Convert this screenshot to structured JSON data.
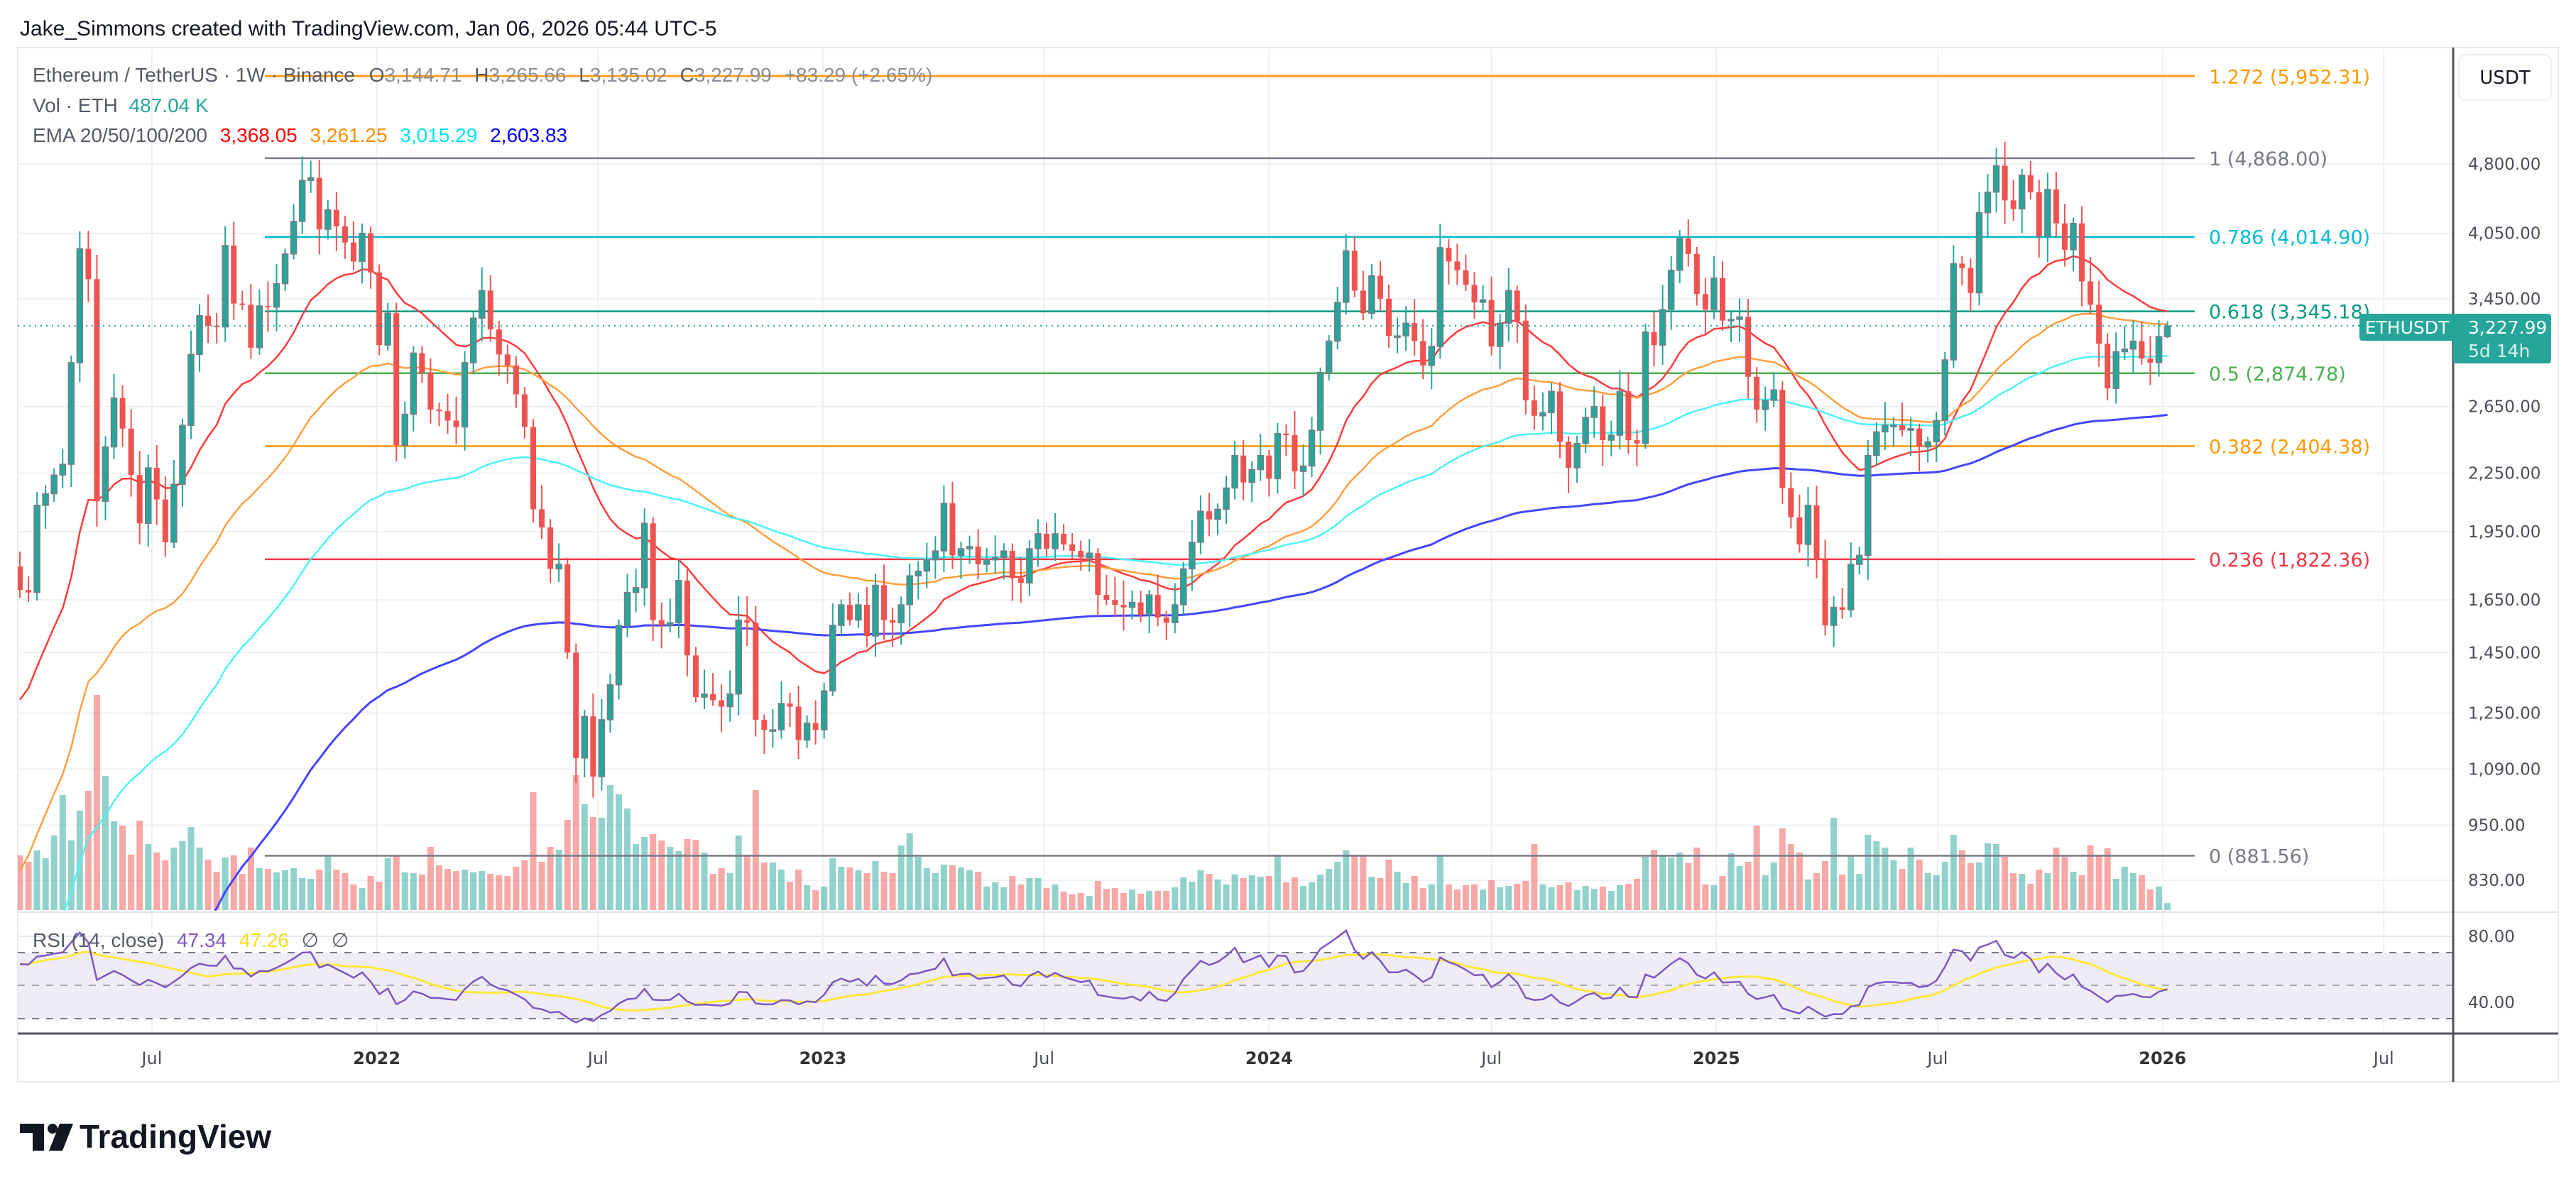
{
  "header": {
    "title": "Jake_Simmons created with TradingView.com, Jan 06, 2026 05:44 UTC-5"
  },
  "legend": {
    "symbol": "Ethereum / TetherUS · 1W · Binance",
    "o_label": "O",
    "open": "3,144.71",
    "h_label": "H",
    "high": "3,265.66",
    "l_label": "L",
    "low": "3,135.02",
    "c_label": "C",
    "close": "3,227.99",
    "change": "+83.29 (+2.65%)",
    "vol_label": "Vol · ETH",
    "vol_value": "487.04 K",
    "ema_label": "EMA 20/50/100/200",
    "ema_values": [
      "3,368.05",
      "3,261.25",
      "3,015.29",
      "2,603.83"
    ]
  },
  "rsi_legend": {
    "label": "RSI (14, close)",
    "rsi": "47.34",
    "ma": "47.26",
    "extra1": "∅",
    "extra2": "∅"
  },
  "price_axis": {
    "currency_button": "USDT"
  },
  "price_tag": {
    "symbol": "ETHUSDT",
    "price": "3,227.99",
    "countdown": "5d 14h"
  },
  "logo": {
    "text": "TradingView"
  },
  "colors": {
    "up": "#26a69a",
    "down": "#ef5350",
    "up_border": "#787b86",
    "ema": [
      "#ff3b3b",
      "#ff9f40",
      "#4df2f7",
      "#4545ff"
    ],
    "rsi": "#7e57c2",
    "rsi_ma": "#fde93b",
    "rsi_band": "#efecf8"
  },
  "chart_data": {
    "type": "candlestick",
    "interval": "1W",
    "first_date": "2021-03-15",
    "y_scale": "log",
    "first_open": 1790,
    "last_candle": {
      "open": 3144.71,
      "high": 3265.66,
      "low": 3135.02,
      "close": 3227.99
    },
    "close": [
      1690,
      1680,
      2080,
      2140,
      2240,
      2300,
      2950,
      3900,
      3620,
      2100,
      2400,
      2705,
      2510,
      2240,
      1990,
      2280,
      2110,
      1900,
      2190,
      2530,
      3010,
      3310,
      3230,
      3220,
      3930,
      3410,
      3400,
      3060,
      3390,
      3380,
      3580,
      3850,
      4170,
      4610,
      4640,
      4090,
      4290,
      4120,
      3960,
      3780,
      4050,
      3680,
      3080,
      3330,
      2410,
      2600,
      3020,
      2880,
      2630,
      2620,
      2560,
      2520,
      2950,
      3290,
      3520,
      3200,
      3010,
      2930,
      2730,
      2520,
      2060,
      1970,
      1780,
      1800,
      1450,
      1120,
      1240,
      1070,
      1230,
      1340,
      1550,
      1680,
      1700,
      1990,
      1570,
      1550,
      1560,
      1730,
      1440,
      1300,
      1310,
      1290,
      1270,
      1310,
      1570,
      1560,
      1230,
      1200,
      1200,
      1280,
      1270,
      1170,
      1220,
      1200,
      1320,
      1550,
      1630,
      1570,
      1630,
      1510,
      1710,
      1570,
      1560,
      1630,
      1750,
      1770,
      1820,
      1860,
      2090,
      1840,
      1870,
      1880,
      1800,
      1820,
      1830,
      1860,
      1740,
      1720,
      1870,
      1940,
      1870,
      1940,
      1890,
      1860,
      1830,
      1850,
      1670,
      1650,
      1630,
      1620,
      1640,
      1590,
      1670,
      1580,
      1560,
      1630,
      1780,
      1900,
      2050,
      2010,
      2060,
      2170,
      2350,
      2200,
      2270,
      2350,
      2220,
      2480,
      2470,
      2260,
      2290,
      2500,
      2880,
      3110,
      3420,
      3880,
      3520,
      3330,
      3650,
      3450,
      3150,
      3150,
      3250,
      3110,
      2930,
      3070,
      3910,
      3780,
      3700,
      3570,
      3420,
      3440,
      3070,
      3250,
      3520,
      3270,
      2690,
      2590,
      2610,
      2750,
      2430,
      2280,
      2420,
      2580,
      2650,
      2440,
      2470,
      2750,
      2440,
      2420,
      3180,
      3080,
      3360,
      3700,
      4000,
      3850,
      3490,
      3360,
      3630,
      3270,
      3280,
      3300,
      2850,
      2630,
      2690,
      2760,
      2170,
      2020,
      1890,
      2080,
      1820,
      1550,
      1620,
      1610,
      1800,
      1840,
      2350,
      2490,
      2530,
      2530,
      2500,
      2510,
      2400,
      2430,
      2560,
      2970,
      3760,
      3720,
      3500,
      4260,
      4480,
      4780,
      4390,
      4300,
      4670,
      4480,
      4020,
      4510,
      4150,
      3890,
      4150,
      3600,
      3400,
      3090,
      2770,
      3030,
      3050,
      3110,
      2980,
      2950,
      3144.71,
      3227.99
    ],
    "volume_k": [
      3850,
      3400,
      4200,
      3650,
      5250,
      8100,
      4900,
      7000,
      8400,
      15150,
      9450,
      6250,
      5950,
      3900,
      6300,
      4650,
      4050,
      3500,
      4400,
      4850,
      5850,
      4400,
      3550,
      2700,
      3700,
      3850,
      2550,
      4400,
      2950,
      2900,
      2650,
      2800,
      2950,
      2250,
      2200,
      2850,
      3900,
      2850,
      2600,
      1800,
      1550,
      2400,
      2000,
      3650,
      3850,
      2650,
      2600,
      2500,
      4450,
      3150,
      2900,
      2750,
      2850,
      2650,
      2750,
      2550,
      2450,
      2400,
      3050,
      3500,
      8300,
      3400,
      4450,
      4250,
      6350,
      9500,
      7450,
      6550,
      6500,
      8800,
      8150,
      7150,
      4650,
      5150,
      5350,
      4900,
      4450,
      4150,
      5000,
      4950,
      4050,
      2550,
      2950,
      2600,
      5250,
      3900,
      8450,
      3350,
      3350,
      2850,
      2000,
      2850,
      1750,
      1400,
      1650,
      3650,
      3050,
      3000,
      2800,
      2600,
      3450,
      2700,
      2600,
      4550,
      5400,
      3750,
      2950,
      2600,
      3200,
      3150,
      3000,
      2800,
      2700,
      1650,
      1950,
      1600,
      2400,
      1800,
      2250,
      2250,
      1550,
      1800,
      1300,
      1100,
      1200,
      1000,
      2050,
      1500,
      1550,
      1200,
      1450,
      1150,
      1350,
      1350,
      1350,
      1600,
      2300,
      2000,
      2800,
      2550,
      2150,
      1800,
      2500,
      2250,
      2450,
      2350,
      2400,
      3900,
      1950,
      2300,
      1700,
      1950,
      2500,
      2900,
      3400,
      4200,
      3900,
      3900,
      2350,
      2250,
      3550,
      2700,
      1900,
      2400,
      1550,
      1800,
      3900,
      1800,
      1450,
      1750,
      1800,
      1450,
      2100,
      1600,
      1700,
      1850,
      2050,
      4650,
      1800,
      1600,
      1750,
      1950,
      1400,
      1700,
      1500,
      1650,
      1350,
      1750,
      1850,
      2200,
      3750,
      4250,
      3850,
      3700,
      4050,
      3300,
      4400,
      1800,
      1750,
      2400,
      4000,
      3100,
      3400,
      5950,
      2450,
      3350,
      5750,
      4650,
      4050,
      2150,
      2600,
      3450,
      6500,
      2500,
      3850,
      2550,
      5300,
      4850,
      4400,
      3500,
      2900,
      4400,
      3550,
      2600,
      2450,
      3400,
      5300,
      4200,
      3300,
      3350,
      4700,
      4650,
      3750,
      2600,
      2550,
      1850,
      2850,
      2600,
      4400,
      3750,
      2700,
      2450,
      4550,
      3900,
      4350,
      2200,
      3050,
      2600,
      2450,
      1450,
      1650,
      487.04
    ],
    "ema_periods": [
      20,
      50,
      100,
      200
    ],
    "y_ticks": [
      "4,800.00",
      "4,050.00",
      "3,450.00",
      "2,650.00",
      "2,250.00",
      "1,950.00",
      "1,650.00",
      "1,450.00",
      "1,250.00",
      "1,090.00",
      "950.00",
      "830.00"
    ],
    "x_ticks": [
      {
        "label": "Jul",
        "year": false
      },
      {
        "label": "2022",
        "year": true
      },
      {
        "label": "Jul",
        "year": false
      },
      {
        "label": "2023",
        "year": true
      },
      {
        "label": "Jul",
        "year": false
      },
      {
        "label": "2024",
        "year": true
      },
      {
        "label": "Jul",
        "year": false
      },
      {
        "label": "2025",
        "year": true
      },
      {
        "label": "Jul",
        "year": false
      },
      {
        "label": "2026",
        "year": true
      },
      {
        "label": "Jul",
        "year": false
      }
    ],
    "fib_levels": [
      {
        "ratio": 1.272,
        "price": 5952.31,
        "label": "1.272 (5,952.31)",
        "color": "#ff9800"
      },
      {
        "ratio": 1,
        "price": 4868.0,
        "label": "1 (4,868.00)",
        "color": "#787b86"
      },
      {
        "ratio": 0.786,
        "price": 4014.9,
        "label": "0.786 (4,014.90)",
        "color": "#00bcd4"
      },
      {
        "ratio": 0.618,
        "price": 3345.18,
        "label": "0.618 (3,345.18)",
        "color": "#089981"
      },
      {
        "ratio": 0.5,
        "price": 2874.78,
        "label": "0.5 (2,874.78)",
        "color": "#4caf50"
      },
      {
        "ratio": 0.382,
        "price": 2404.38,
        "label": "0.382 (2,404.38)",
        "color": "#ff9800"
      },
      {
        "ratio": 0.236,
        "price": 1822.36,
        "label": "0.236 (1,822.36)",
        "color": "#f23645"
      },
      {
        "ratio": 0,
        "price": 881.56,
        "label": "0 (881.56)",
        "color": "#787b86"
      }
    ],
    "rsi": {
      "period": 14,
      "ma_period": 14,
      "levels": [
        70,
        50,
        30
      ],
      "y_ticks": [
        "80.00",
        "40.00"
      ]
    }
  }
}
